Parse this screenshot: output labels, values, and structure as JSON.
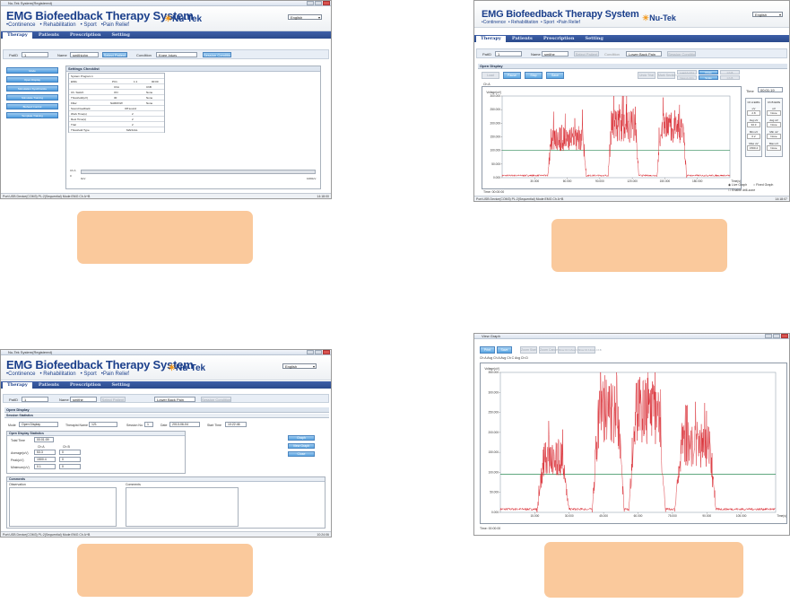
{
  "window_title_1": "Nu-Tek System(Registered)",
  "window_title_3": "Nu-Tek System(Registered)",
  "window_title_4": "View Graph",
  "app": {
    "title": "EMG Biofeedback Therapy System",
    "subnav": [
      "•Continence",
      "• Rehabilitation",
      "• Sport",
      "•Pain Relief"
    ],
    "logo": "Nu-Tek",
    "tm": "®",
    "language": "English"
  },
  "tabs": [
    "Therapy",
    "Patients",
    "Prescription",
    "Setting"
  ],
  "panel1": {
    "patid_label": "PatID",
    "patid": "1",
    "name_label": "Name",
    "name": "smithjohn",
    "select_patient": "Select Patient",
    "condition_label": "Condition",
    "condition": "Knee Injury",
    "session_condition": "Session Condition",
    "side_buttons": [
      "Mode",
      "Open Display",
      "Stimulation Synchronize",
      "Stimulate Training",
      "Biofeed Control",
      "Template Training"
    ],
    "settings_title": "Settings Checklist",
    "settings_rows": [
      [
        "System Program 1",
        "",
        ""
      ],
      [
        "EMG",
        "PC1",
        "1:1",
        "00:00"
      ],
      [
        "",
        "ChA",
        "ChB"
      ],
      [
        "Ch. Switch",
        "ON",
        "None"
      ],
      [
        "Threshold(uV)",
        "30",
        "None"
      ],
      [
        "Filter",
        "NARROW",
        "None"
      ],
      [
        "Sound feedback",
        "Off:sound",
        ""
      ],
      [
        "Work Time(s)",
        "2",
        ""
      ],
      [
        "Rest Time(s)",
        "2",
        ""
      ],
      [
        "Trial",
        "2",
        ""
      ],
      [
        "Threshold Type",
        "MANUAL",
        ""
      ]
    ],
    "progress_ch": "Ch A",
    "progress_val": "0",
    "progress_start": "0uV",
    "progress_end": "1000uV",
    "status": "Port:USB Device(COM3) PL:2(Sequential) Mode:EMG Ch A+B",
    "time": "14:18:00"
  },
  "panel2": {
    "patid": "1",
    "name": "smithe",
    "select_patient": "Select Patient",
    "condition_label": "Condition",
    "condition": "Lower Back Pain",
    "session_condition": "Session Condition",
    "section": "Open Display",
    "ctrl_buttons": [
      "Load",
      "Pause",
      "Stop",
      "Save"
    ],
    "ctrl_right": [
      "Undo Trial",
      "Mark Section",
      "Load A-Ch1",
      "View A-Ch1",
      "Close",
      "Scale",
      "Ch B",
      "Ch B"
    ],
    "channel_label": "Ch A",
    "unit_label": "Voltage(uV)",
    "yticks": [
      "300.000",
      "250.000",
      "200.000",
      "150.000",
      "100.000",
      "50.000",
      "0.000"
    ],
    "xticks": [
      "30.000",
      "60.000",
      "90.000",
      "120.000",
      "150.000",
      "180.000"
    ],
    "xunit": "Time(s)",
    "time_label": "Time",
    "time_value": "00:01:19",
    "chA_header": "Ch A EMG",
    "chB_header": "Ch B EMG",
    "stats_a": [
      [
        "uV",
        "2.8"
      ],
      [
        "Avg uV",
        "94.3"
      ],
      [
        "Min uV",
        "0.2"
      ],
      [
        "Max uV",
        "1500.4"
      ]
    ],
    "stats_b": [
      [
        "uV",
        "None"
      ],
      [
        "Avg uV",
        "None"
      ],
      [
        "Min uV",
        "None"
      ],
      [
        "Max uV",
        "None"
      ]
    ],
    "radio1": "Live Graph",
    "radio2": "Fixed Graph",
    "check": "Enable drill-zone",
    "time_bar": "Time: 00:00:00",
    "status": "Port:USB Device(COM3) PL:2(Sequential) Mode:EMG Ch A+B",
    "time": "14:18:07"
  },
  "panel3": {
    "patid": "1",
    "name": "smithe",
    "select_patient": "Select Patient",
    "condition": "Lower Back Pain",
    "session_condition": "Session Condition",
    "section": "Open Display",
    "session_stats": "Session Statistics",
    "mode_label": "Mode",
    "mode_val": "Open Display",
    "therapist_label": "Therapist Name",
    "therapist_val": "121",
    "session_label": "Session No.",
    "session_val": "1",
    "date_label": "Date",
    "date_val": "2013-06-04",
    "start_label": "Start Time",
    "start_val": "10:22:46",
    "ods_title": "Open Display Statistics",
    "total_label": "Total Time",
    "total_val": "00:01:09",
    "cha": "Ch A",
    "chb": "Ch B",
    "rows": [
      [
        "Average(uV)",
        "53.3",
        "0"
      ],
      [
        "Peak(uV)",
        "1500.4",
        "0"
      ],
      [
        "Minimum(uV)",
        "0.1",
        "0"
      ]
    ],
    "side_buttons": [
      "Graph",
      "View Graph",
      "Close"
    ],
    "comments_title": "Comments",
    "observation": "Observation",
    "comments": "Comments",
    "status": "Port:USB Device(COM3) PL:2(Sequential) Mode:EMG Ch A+B",
    "time": "10:24:06"
  },
  "panel4": {
    "buttons": [
      "Print",
      "Save",
      "Zoom Start",
      "Zoom Cancel",
      "Show Ch A View Ch B",
      "Show Ch A Zoom Ch B"
    ],
    "legend": "Ch A Avg Ch A Avg Ch C Avg Ch D",
    "unit_label": "Voltage(uV)",
    "yticks": [
      "350.000",
      "300.000",
      "250.000",
      "200.000",
      "150.000",
      "100.000",
      "50.000",
      "0.000"
    ],
    "xticks": [
      "15.000",
      "30.000",
      "45.000",
      "60.000",
      "75.000",
      "90.000",
      "105.000"
    ],
    "xunit": "Time(s)",
    "time_bar": "Time: 00:00:00"
  },
  "chart_data": [
    {
      "type": "line",
      "ylabel": "Voltage(uV)",
      "xlabel": "Time(s)",
      "ylim": [
        0,
        300
      ],
      "xlim": [
        0,
        200
      ],
      "threshold": 100,
      "bursts": [
        [
          42,
          72,
          170
        ],
        [
          95,
          118,
          230
        ],
        [
          138,
          160,
          215
        ]
      ],
      "baseline": 5
    },
    {
      "type": "line",
      "ylabel": "Voltage(uV)",
      "xlabel": "Time(s)",
      "ylim": [
        0,
        350
      ],
      "xlim": [
        0,
        120
      ],
      "threshold": 95,
      "bursts": [
        [
          18,
          28,
          160
        ],
        [
          42,
          52,
          310
        ],
        [
          58,
          70,
          305
        ],
        [
          78,
          92,
          200
        ]
      ],
      "baseline": 5
    }
  ]
}
